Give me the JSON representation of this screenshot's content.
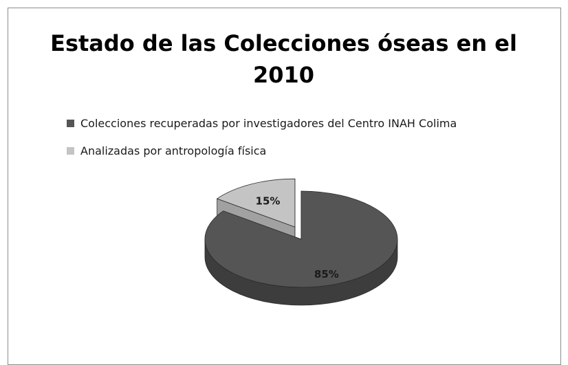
{
  "chart_data": {
    "type": "pie",
    "title": "Estado de las Colecciones óseas en el 2010",
    "categories": [
      "Colecciones recuperadas por investigadores del Centro INAH Colima",
      "Analizadas por antropología física"
    ],
    "values": [
      85,
      15
    ],
    "data_labels": [
      "85%",
      "15%"
    ],
    "colors": [
      "#555555",
      "#c4c4c4"
    ],
    "legend_position": "top-left",
    "style": "3d-exploded"
  }
}
